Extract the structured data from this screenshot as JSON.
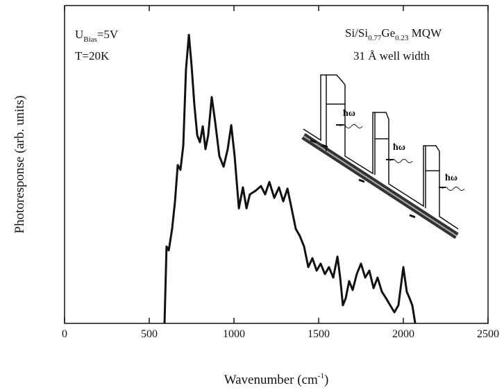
{
  "chart_data": {
    "type": "line",
    "x_label": [
      "Wavenumber (cm",
      "-1",
      ")"
    ],
    "y_label": "Photoresponse (arb. units)",
    "xlim": [
      0,
      2500
    ],
    "xticks": [
      0,
      500,
      1000,
      1500,
      2000,
      2500
    ],
    "ylim": [
      0,
      100
    ],
    "x": [
      590,
      602,
      615,
      635,
      652,
      668,
      684,
      701,
      717,
      734,
      750,
      766,
      783,
      799,
      816,
      832,
      848,
      869,
      889,
      914,
      939,
      963,
      984,
      1004,
      1029,
      1053,
      1074,
      1094,
      1127,
      1160,
      1184,
      1209,
      1238,
      1266,
      1291,
      1316,
      1340,
      1365,
      1389,
      1414,
      1439,
      1463,
      1488,
      1512,
      1537,
      1561,
      1586,
      1611,
      1627,
      1643,
      1660,
      1680,
      1701,
      1725,
      1750,
      1775,
      1799,
      1824,
      1848,
      1873,
      1898,
      1922,
      1947,
      1971,
      2000,
      2020,
      2037,
      2053,
      2070
    ],
    "series": [
      {
        "color": "#111111",
        "values": [
          0,
          24.2,
          23,
          29.7,
          38.4,
          49.8,
          48.3,
          55.9,
          79.9,
          90.8,
          81,
          69,
          59.2,
          57,
          62,
          54.8,
          59.2,
          71.2,
          63.5,
          52.6,
          49.3,
          54.8,
          62.4,
          52.6,
          36.2,
          42.8,
          36.2,
          40.6,
          41.7,
          43.2,
          40.6,
          44.5,
          39.5,
          42.8,
          38.4,
          42.4,
          36.2,
          29.7,
          27.5,
          24.2,
          17.7,
          20.5,
          16.6,
          18.8,
          15.5,
          17.7,
          14.4,
          21,
          14.4,
          5.7,
          7.9,
          13.3,
          10.5,
          15.5,
          18.8,
          14.4,
          16.6,
          11.1,
          14.4,
          10,
          7.9,
          5.7,
          3.5,
          5.7,
          17.7,
          10,
          7.9,
          5.7,
          0
        ]
      }
    ],
    "annotations": [
      [
        "U",
        "Bias",
        "=5V"
      ],
      [
        "T=20K"
      ],
      [
        "Si/Si",
        "0.77",
        "Ge",
        "0.23",
        " MQW"
      ],
      [
        "31 Å well width"
      ]
    ],
    "inset_labels": [
      "ħω",
      "ħω",
      "ħω"
    ]
  }
}
